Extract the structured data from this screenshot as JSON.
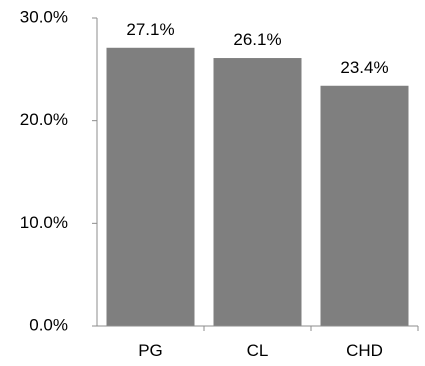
{
  "chart_data": {
    "type": "bar",
    "categories": [
      "PG",
      "CL",
      "CHD"
    ],
    "values": [
      27.1,
      26.1,
      23.4
    ],
    "data_labels": [
      "27.1%",
      "26.1%",
      "23.4%"
    ],
    "y_ticks": [
      0,
      10,
      20,
      30
    ],
    "y_tick_labels": [
      "0.0%",
      "10.0%",
      "20.0%",
      "30.0%"
    ],
    "ylim": [
      0,
      30
    ],
    "title": "",
    "xlabel": "",
    "ylabel": "",
    "grid": false,
    "legend": "none",
    "bar_color": "#7f7f7f",
    "axis_color": "#8c8c8c"
  }
}
